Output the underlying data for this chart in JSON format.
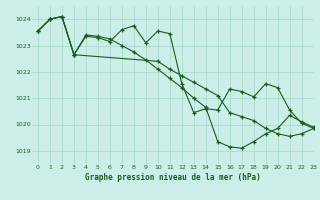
{
  "title": "Graphe pression niveau de la mer (hPa)",
  "bg_color": "#cceee8",
  "grid_color": "#aaddcc",
  "line_color": "#1a5c1a",
  "marker_color": "#1a5c1a",
  "xlim": [
    -0.5,
    23
  ],
  "ylim": [
    1018.5,
    1024.5
  ],
  "yticks": [
    1019,
    1020,
    1021,
    1022,
    1023,
    1024
  ],
  "xticks": [
    0,
    1,
    2,
    3,
    4,
    5,
    6,
    7,
    8,
    9,
    10,
    11,
    12,
    13,
    14,
    15,
    16,
    17,
    18,
    19,
    20,
    21,
    22,
    23
  ],
  "series1_x": [
    0,
    1,
    2,
    3,
    4,
    5,
    6,
    7,
    8,
    9,
    10,
    11,
    12,
    13,
    14,
    15,
    16,
    17,
    18,
    19,
    20,
    21,
    22,
    23
  ],
  "series1_y": [
    1023.55,
    1024.0,
    1024.1,
    1022.65,
    1023.35,
    1023.3,
    1023.15,
    1023.6,
    1023.75,
    1023.1,
    1023.55,
    1023.45,
    1021.55,
    1020.45,
    1020.6,
    1020.55,
    1021.35,
    1021.25,
    1021.05,
    1021.55,
    1021.4,
    1020.55,
    1020.05,
    1019.85
  ],
  "series2_x": [
    0,
    1,
    2,
    3,
    10,
    11,
    12,
    13,
    14,
    15,
    16,
    17,
    18,
    19,
    20,
    21,
    22,
    23
  ],
  "series2_y": [
    1023.55,
    1024.0,
    1024.1,
    1022.65,
    1022.4,
    1022.1,
    1021.85,
    1021.6,
    1021.35,
    1021.1,
    1020.45,
    1020.3,
    1020.15,
    1019.85,
    1019.65,
    1019.55,
    1019.65,
    1019.85
  ],
  "series3_x": [
    0,
    1,
    2,
    3,
    4,
    5,
    6,
    7,
    8,
    9,
    10,
    11,
    12,
    13,
    14,
    15,
    16,
    17,
    18,
    19,
    20,
    21,
    22,
    23
  ],
  "series3_y": [
    1023.55,
    1024.0,
    1024.1,
    1022.65,
    1023.4,
    1023.35,
    1023.25,
    1023.0,
    1022.75,
    1022.45,
    1022.1,
    1021.75,
    1021.4,
    1021.0,
    1020.65,
    1019.35,
    1019.15,
    1019.1,
    1019.35,
    1019.65,
    1019.85,
    1020.35,
    1020.1,
    1019.9
  ]
}
